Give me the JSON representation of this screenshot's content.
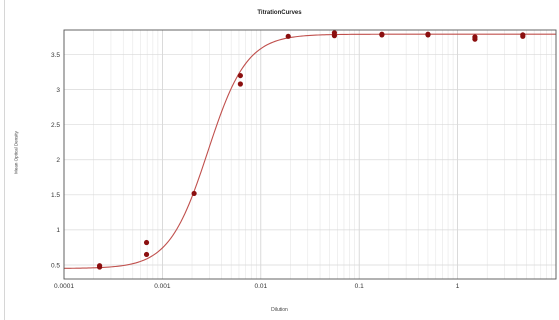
{
  "chart_data": {
    "type": "scatter",
    "title": "TitrationCurves",
    "xlabel": "Dilution",
    "ylabel": "Mean Optical Density",
    "x_scale": "log",
    "xlim": [
      0.0001,
      10
    ],
    "ylim": [
      0.3,
      3.85
    ],
    "x_ticks": [
      0.0001,
      0.001,
      0.01,
      0.1,
      1
    ],
    "x_tick_labels": [
      "0.0001",
      "0.001",
      "0.01",
      "0.1",
      "1"
    ],
    "y_ticks": [
      0.5,
      1,
      1.5,
      2,
      2.5,
      3,
      3.5
    ],
    "y_tick_labels": [
      "0.5",
      "1",
      "1.5",
      "2",
      "2.5",
      "3",
      "3.5"
    ],
    "grid": true,
    "points": {
      "x": [
        0.00023,
        0.00023,
        0.00069,
        0.00069,
        0.0021,
        0.0062,
        0.0062,
        0.019,
        0.056,
        0.056,
        0.17,
        0.17,
        0.5,
        0.5,
        1.5,
        1.5,
        4.6,
        4.6
      ],
      "y": [
        0.49,
        0.47,
        0.65,
        0.82,
        1.52,
        3.08,
        3.2,
        3.76,
        3.77,
        3.81,
        3.78,
        3.79,
        3.78,
        3.79,
        3.72,
        3.75,
        3.76,
        3.78
      ]
    },
    "fit": {
      "model": "4PL",
      "bottom": 0.45,
      "top": 3.79,
      "ec50": 0.0029,
      "hill": 2.2
    },
    "colors": {
      "points": "#8b0f0f",
      "curve": "#c0504d",
      "grid": "#e6e6e6",
      "axis": "#555555"
    }
  }
}
